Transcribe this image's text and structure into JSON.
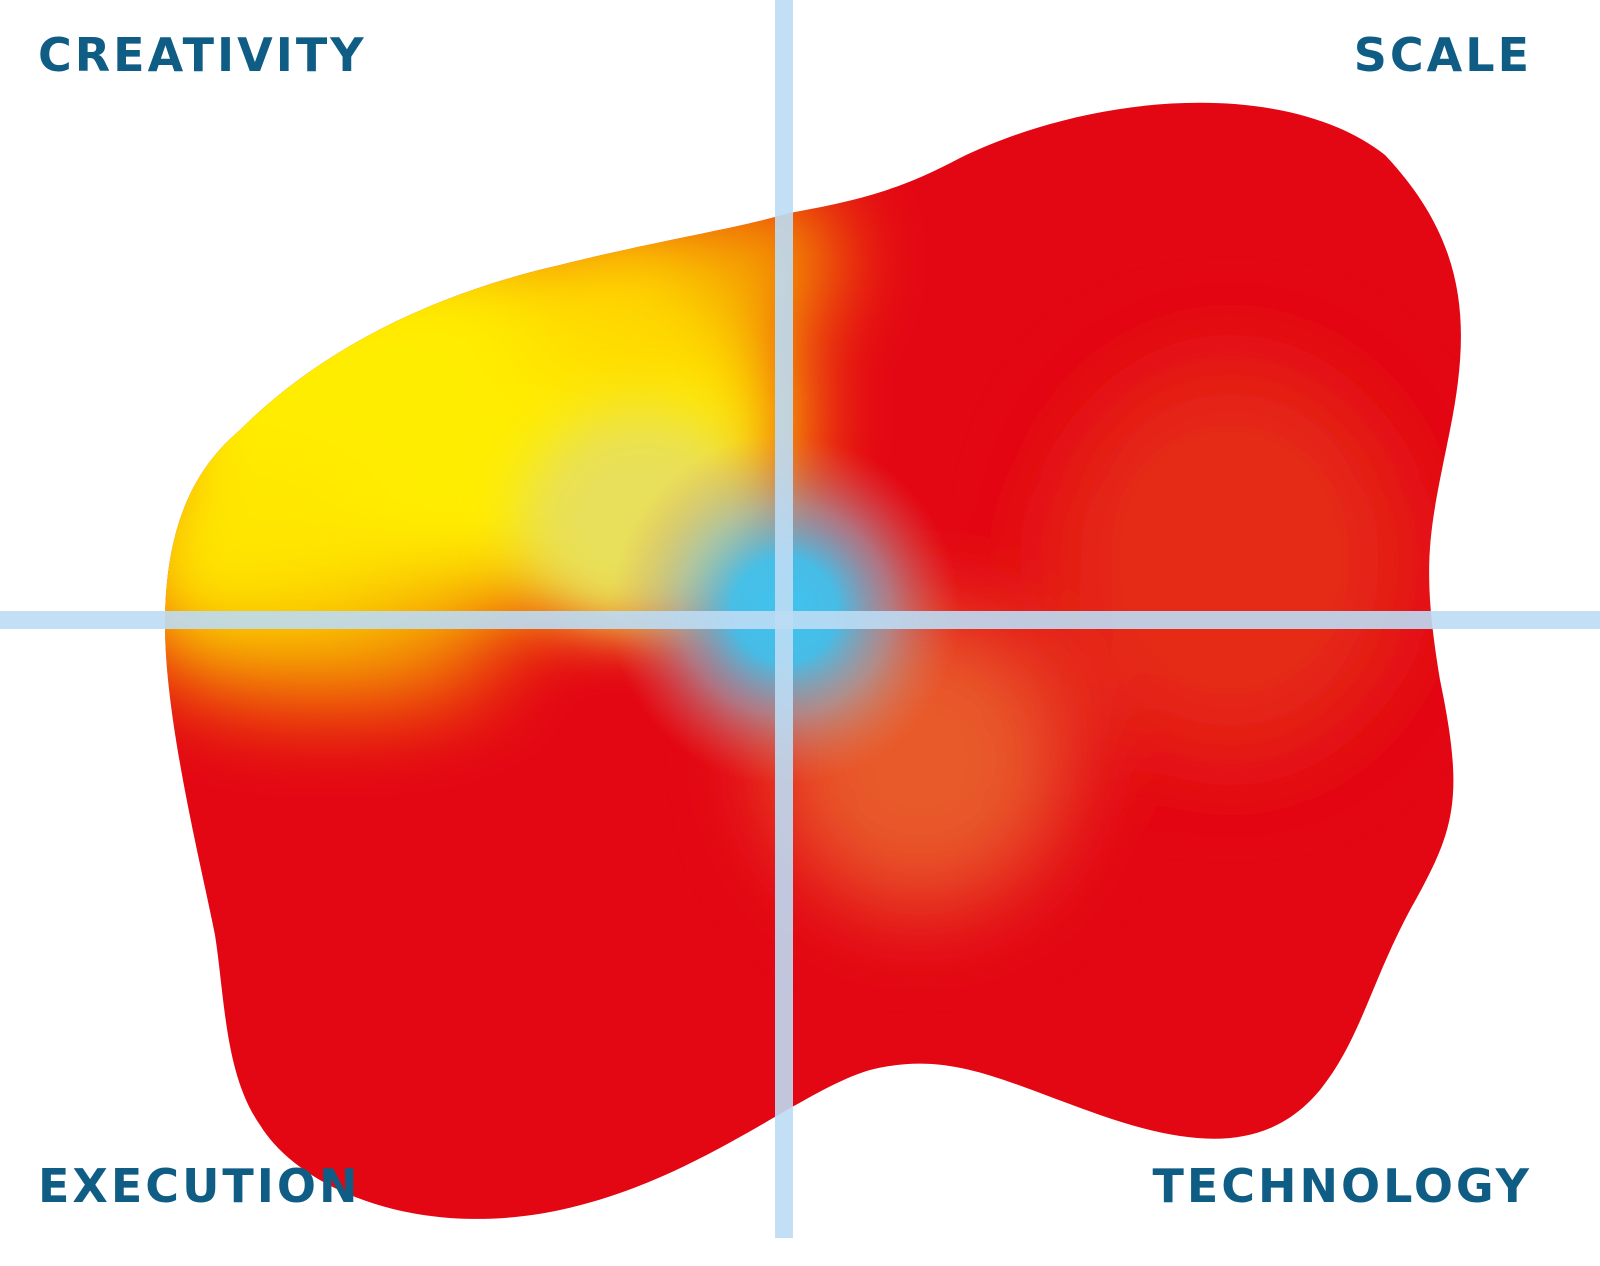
{
  "quadrants": {
    "top_left": "CREATIVITY",
    "top_right": "SCALE",
    "bottom_left": "EXECUTION",
    "bottom_right": "TECHNOLOGY"
  },
  "colors": {
    "label": "#0f5d84",
    "axis": "#bcdcf4",
    "red": "#e30613",
    "yellow": "#ffed00",
    "orange": "#f5a300",
    "cyan": "#3fc4f0",
    "background": "#ffffff"
  }
}
